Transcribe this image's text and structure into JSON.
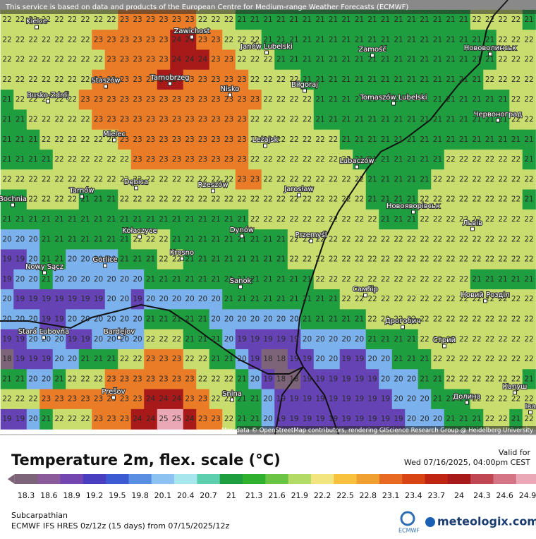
{
  "header": {
    "notice": "This service is based on data and products of the European Centre for Medium-range Weather Forecasts (ECMWF)"
  },
  "map": {
    "grid": [
      [
        22,
        22,
        22,
        22,
        22,
        22,
        22,
        22,
        22,
        23,
        23,
        23,
        23,
        23,
        23,
        22,
        22,
        22,
        21,
        21,
        21,
        21,
        21,
        21,
        21,
        21,
        21,
        21,
        21,
        21,
        21,
        21,
        21,
        21,
        21,
        21,
        22,
        22,
        22,
        22,
        21
      ],
      [
        22,
        22,
        22,
        22,
        22,
        22,
        22,
        23,
        23,
        23,
        23,
        23,
        23,
        24,
        24,
        23,
        23,
        22,
        22,
        22,
        21,
        21,
        21,
        21,
        21,
        21,
        21,
        21,
        21,
        21,
        21,
        21,
        21,
        21,
        21,
        21,
        21,
        21,
        22,
        22,
        22
      ],
      [
        22,
        22,
        22,
        22,
        22,
        22,
        22,
        22,
        23,
        23,
        23,
        23,
        23,
        24,
        24,
        24,
        23,
        23,
        22,
        22,
        22,
        21,
        21,
        21,
        21,
        21,
        21,
        21,
        21,
        21,
        21,
        21,
        21,
        21,
        21,
        21,
        21,
        21,
        22,
        22,
        22
      ],
      [
        22,
        22,
        22,
        22,
        22,
        22,
        22,
        23,
        23,
        23,
        23,
        23,
        24,
        24,
        23,
        23,
        23,
        23,
        23,
        22,
        22,
        22,
        22,
        21,
        21,
        21,
        21,
        21,
        21,
        21,
        21,
        21,
        21,
        21,
        21,
        21,
        21,
        22,
        22,
        22,
        22
      ],
      [
        21,
        22,
        22,
        22,
        22,
        22,
        23,
        23,
        23,
        23,
        23,
        23,
        23,
        23,
        23,
        23,
        23,
        23,
        23,
        23,
        22,
        22,
        22,
        22,
        21,
        21,
        21,
        21,
        21,
        21,
        21,
        21,
        21,
        21,
        21,
        21,
        21,
        21,
        21,
        22,
        22
      ],
      [
        21,
        21,
        22,
        22,
        22,
        22,
        22,
        23,
        23,
        23,
        23,
        23,
        23,
        23,
        23,
        23,
        23,
        23,
        23,
        22,
        22,
        22,
        22,
        22,
        21,
        21,
        21,
        21,
        21,
        21,
        21,
        21,
        21,
        21,
        21,
        21,
        21,
        21,
        21,
        22,
        22
      ],
      [
        21,
        21,
        21,
        22,
        22,
        22,
        22,
        22,
        22,
        23,
        23,
        23,
        23,
        23,
        23,
        23,
        23,
        23,
        23,
        22,
        22,
        22,
        22,
        22,
        22,
        22,
        21,
        21,
        21,
        21,
        21,
        21,
        21,
        21,
        21,
        21,
        21,
        21,
        21,
        21,
        21
      ],
      [
        21,
        21,
        21,
        21,
        22,
        22,
        22,
        22,
        22,
        22,
        23,
        23,
        23,
        23,
        23,
        23,
        23,
        23,
        23,
        22,
        22,
        22,
        22,
        22,
        22,
        22,
        22,
        21,
        21,
        21,
        21,
        21,
        21,
        21,
        22,
        22,
        22,
        22,
        22,
        22,
        21
      ],
      [
        22,
        22,
        22,
        22,
        22,
        22,
        22,
        22,
        22,
        22,
        22,
        22,
        22,
        22,
        22,
        22,
        22,
        22,
        23,
        23,
        22,
        22,
        22,
        22,
        22,
        22,
        22,
        22,
        21,
        21,
        21,
        21,
        21,
        22,
        22,
        22,
        22,
        22,
        22,
        22,
        22
      ],
      [
        21,
        21,
        22,
        22,
        22,
        22,
        21,
        21,
        21,
        22,
        22,
        22,
        22,
        22,
        22,
        22,
        22,
        22,
        22,
        22,
        22,
        22,
        22,
        22,
        22,
        22,
        22,
        22,
        21,
        21,
        21,
        21,
        22,
        22,
        22,
        22,
        22,
        22,
        22,
        22,
        21
      ],
      [
        21,
        21,
        21,
        21,
        21,
        21,
        21,
        21,
        21,
        21,
        21,
        21,
        21,
        21,
        21,
        21,
        21,
        21,
        21,
        22,
        22,
        22,
        22,
        22,
        22,
        22,
        22,
        22,
        22,
        21,
        21,
        21,
        22,
        22,
        22,
        22,
        22,
        22,
        22,
        22,
        22
      ],
      [
        20,
        20,
        20,
        21,
        21,
        21,
        21,
        21,
        21,
        21,
        22,
        22,
        22,
        21,
        21,
        21,
        21,
        21,
        21,
        21,
        21,
        21,
        22,
        22,
        22,
        22,
        22,
        22,
        22,
        22,
        22,
        22,
        22,
        22,
        22,
        22,
        22,
        22,
        22,
        22,
        22
      ],
      [
        19,
        19,
        20,
        21,
        21,
        20,
        20,
        20,
        20,
        21,
        21,
        21,
        22,
        22,
        21,
        21,
        21,
        21,
        21,
        21,
        21,
        21,
        22,
        22,
        22,
        22,
        22,
        22,
        22,
        22,
        22,
        22,
        22,
        22,
        22,
        22,
        22,
        22,
        22,
        22,
        22
      ],
      [
        19,
        20,
        20,
        21,
        20,
        20,
        20,
        20,
        20,
        20,
        20,
        21,
        21,
        21,
        21,
        21,
        21,
        21,
        21,
        21,
        21,
        21,
        21,
        21,
        22,
        22,
        22,
        22,
        22,
        22,
        22,
        22,
        22,
        22,
        22,
        22,
        21,
        21,
        21,
        21,
        21
      ],
      [
        20,
        19,
        19,
        19,
        19,
        19,
        19,
        19,
        20,
        20,
        19,
        20,
        20,
        20,
        20,
        20,
        20,
        21,
        21,
        21,
        21,
        21,
        21,
        21,
        21,
        21,
        22,
        22,
        22,
        22,
        22,
        22,
        22,
        22,
        22,
        22,
        22,
        22,
        22,
        22,
        22
      ],
      [
        20,
        20,
        20,
        19,
        19,
        20,
        20,
        20,
        20,
        20,
        20,
        21,
        21,
        21,
        21,
        21,
        20,
        20,
        20,
        20,
        20,
        20,
        20,
        21,
        21,
        21,
        21,
        21,
        22,
        22,
        22,
        22,
        22,
        22,
        22,
        22,
        22,
        22,
        22,
        22,
        22
      ],
      [
        19,
        19,
        20,
        20,
        20,
        19,
        19,
        20,
        20,
        20,
        20,
        22,
        22,
        22,
        21,
        21,
        21,
        20,
        19,
        19,
        19,
        19,
        19,
        20,
        20,
        20,
        20,
        20,
        21,
        21,
        21,
        21,
        22,
        22,
        22,
        22,
        22,
        22,
        22,
        22,
        22
      ],
      [
        18,
        19,
        19,
        19,
        20,
        20,
        21,
        21,
        21,
        22,
        22,
        23,
        23,
        23,
        22,
        22,
        21,
        21,
        20,
        19,
        18,
        18,
        19,
        19,
        20,
        20,
        19,
        19,
        20,
        20,
        21,
        21,
        21,
        22,
        22,
        22,
        22,
        22,
        22,
        22,
        22
      ],
      [
        21,
        21,
        20,
        20,
        21,
        22,
        22,
        22,
        23,
        23,
        23,
        23,
        23,
        23,
        23,
        22,
        22,
        22,
        21,
        20,
        19,
        18,
        18,
        19,
        19,
        19,
        19,
        19,
        19,
        20,
        20,
        20,
        21,
        21,
        22,
        22,
        22,
        22,
        22,
        22,
        21
      ],
      [
        22,
        22,
        22,
        23,
        23,
        23,
        23,
        23,
        23,
        23,
        23,
        24,
        24,
        24,
        23,
        23,
        22,
        22,
        21,
        21,
        20,
        19,
        19,
        19,
        19,
        19,
        19,
        19,
        19,
        19,
        20,
        20,
        20,
        21,
        21,
        21,
        22,
        22,
        22,
        22,
        22
      ],
      [
        19,
        19,
        20,
        21,
        22,
        22,
        22,
        23,
        23,
        23,
        24,
        24,
        25,
        25,
        24,
        23,
        23,
        22,
        21,
        21,
        20,
        19,
        19,
        19,
        19,
        19,
        19,
        19,
        19,
        19,
        19,
        20,
        20,
        20,
        21,
        21,
        21,
        22,
        22,
        21,
        22
      ]
    ],
    "cities": [
      "Kielce",
      "Zawichost",
      "Janów Lubelski",
      "Zamość",
      "Нововолинськ",
      "Staszów",
      "Tarnobrzeg",
      "Nisko",
      "Biłgoraj",
      "Busko-Zdrój",
      "Tomaszów Lubelski",
      "Червоноград",
      "Mielec",
      "Leżajsk",
      "Lubaczów",
      "Tarnów",
      "Dębica",
      "Rzeszów",
      "Jarosław",
      "Bochnia",
      "Новояворівськ",
      "Kołaczyce",
      "Dynów",
      "Przemyśl",
      "Львів",
      "Gorlice",
      "Krosno",
      "Nowy Sącz",
      "Sanok",
      "Самбір",
      "Новий Розділ",
      "Stará Ľubovňa",
      "Bardejov",
      "Дрогобич",
      "Стрий",
      "Prešov",
      "Snina",
      "Калуш",
      "Долина",
      "Іва"
    ],
    "attribution": "Map data © OpenStreetMap contributors, rendering GIScience Research Group @ Heidelberg University"
  },
  "legend": {
    "title": "Temperature 2m, flex. scale (°C)",
    "valid_label": "Valid for",
    "valid_time": "Wed 07/16/2025, 04:00pm CEST",
    "ticks": [
      18.3,
      18.6,
      18.9,
      19.2,
      19.5,
      19.8,
      20.1,
      20.4,
      20.7,
      21,
      21.3,
      21.6,
      21.9,
      22.2,
      22.5,
      22.8,
      23.1,
      23.4,
      23.7,
      24,
      24.3,
      24.6,
      24.9
    ],
    "colors": [
      "#7d6478",
      "#8a5a9a",
      "#7446b0",
      "#4a3ec0",
      "#3c5ad2",
      "#5a8ee2",
      "#8cc2f2",
      "#a8e6ee",
      "#5ccfae",
      "#1e9e3e",
      "#2fb12f",
      "#6cc444",
      "#b4da66",
      "#f2e47e",
      "#f8c23e",
      "#f0a030",
      "#e86a22",
      "#d84414",
      "#c02412",
      "#a81a1a",
      "#c04654",
      "#d47484",
      "#eaa8b6"
    ]
  },
  "footer": {
    "region": "Subcarpathian",
    "model": "ECMWF IFS HRES 0z/12z (15 days) from 07/15/2025/12z",
    "ecmwf": "ECMWF",
    "brand": "meteologix.com"
  }
}
